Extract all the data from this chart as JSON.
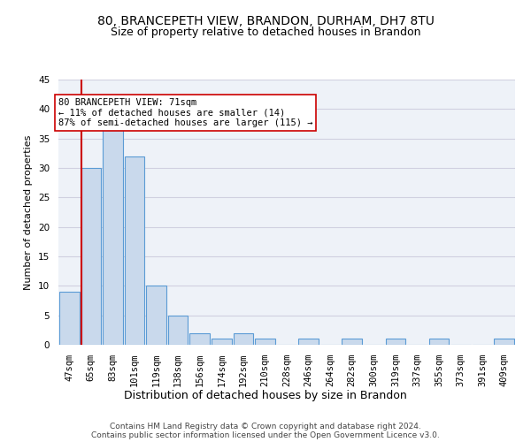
{
  "title1": "80, BRANCEPETH VIEW, BRANDON, DURHAM, DH7 8TU",
  "title2": "Size of property relative to detached houses in Brandon",
  "xlabel": "Distribution of detached houses by size in Brandon",
  "ylabel": "Number of detached properties",
  "categories": [
    "47sqm",
    "65sqm",
    "83sqm",
    "101sqm",
    "119sqm",
    "138sqm",
    "156sqm",
    "174sqm",
    "192sqm",
    "210sqm",
    "228sqm",
    "246sqm",
    "264sqm",
    "282sqm",
    "300sqm",
    "319sqm",
    "337sqm",
    "355sqm",
    "373sqm",
    "391sqm",
    "409sqm"
  ],
  "values": [
    9,
    30,
    37,
    32,
    10,
    5,
    2,
    1,
    2,
    1,
    0,
    1,
    0,
    1,
    0,
    1,
    0,
    1,
    0,
    0,
    1
  ],
  "bar_color": "#c9d9ec",
  "bar_edge_color": "#5b9bd5",
  "grid_color": "#d0d0e0",
  "background_color": "#eef2f8",
  "ref_line_color": "#cc0000",
  "annotation_text": "80 BRANCEPETH VIEW: 71sqm\n← 11% of detached houses are smaller (14)\n87% of semi-detached houses are larger (115) →",
  "annotation_box_color": "#ffffff",
  "annotation_box_edge_color": "#cc0000",
  "footer_text": "Contains HM Land Registry data © Crown copyright and database right 2024.\nContains public sector information licensed under the Open Government Licence v3.0.",
  "ylim": [
    0,
    45
  ],
  "yticks": [
    0,
    5,
    10,
    15,
    20,
    25,
    30,
    35,
    40,
    45
  ],
  "title1_fontsize": 10,
  "title2_fontsize": 9,
  "xlabel_fontsize": 9,
  "ylabel_fontsize": 8,
  "tick_fontsize": 7.5,
  "annotation_fontsize": 7.5,
  "footer_fontsize": 6.5
}
